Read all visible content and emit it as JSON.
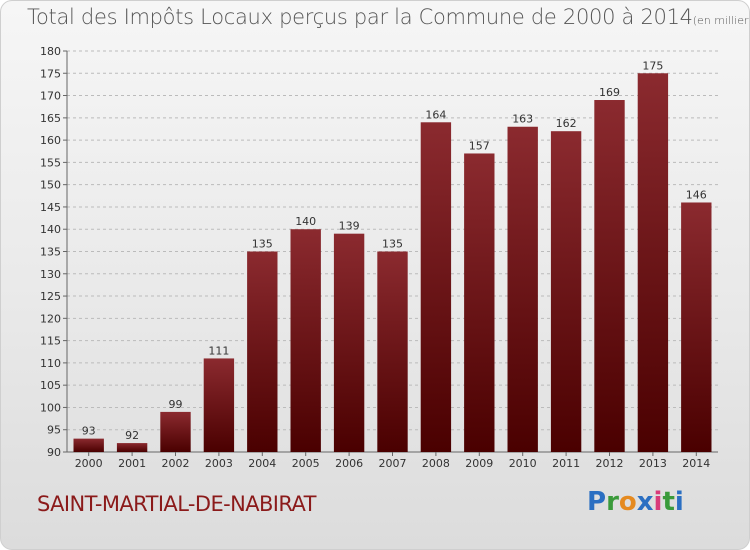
{
  "header": {
    "title": "Total des Impôts Locaux perçus par la Commune de 2000 à 2014",
    "subtitle": "(en milliers d'€)"
  },
  "footer": {
    "commune": "SAINT-MARTIAL-DE-NABIRAT",
    "logo_letters": [
      "P",
      "r",
      "o",
      "x",
      "i",
      "t",
      "i"
    ],
    "logo_colors": [
      "#2b6fc2",
      "#3a9a3a",
      "#e58a1f",
      "#2b6fc2",
      "#d93a7a",
      "#3a9a3a",
      "#2b6fc2"
    ]
  },
  "chart_data": {
    "type": "bar",
    "title": "Total des Impôts Locaux perçus par la Commune de 2000 à 2014",
    "subtitle": "(en milliers d'€)",
    "categories": [
      "2000",
      "2001",
      "2002",
      "2003",
      "2004",
      "2005",
      "2006",
      "2007",
      "2008",
      "2009",
      "2010",
      "2011",
      "2012",
      "2013",
      "2014"
    ],
    "values": [
      93,
      92,
      99,
      111,
      135,
      140,
      139,
      135,
      164,
      157,
      163,
      162,
      169,
      175,
      146
    ],
    "ylim": [
      90,
      180
    ],
    "yticks": [
      90,
      95,
      100,
      105,
      110,
      115,
      120,
      125,
      130,
      135,
      140,
      145,
      150,
      155,
      160,
      165,
      170,
      175,
      180
    ],
    "grid": "horizontal-dashed",
    "bar_color_top": "#8b2a2f",
    "bar_color_bottom": "#4a0000"
  }
}
